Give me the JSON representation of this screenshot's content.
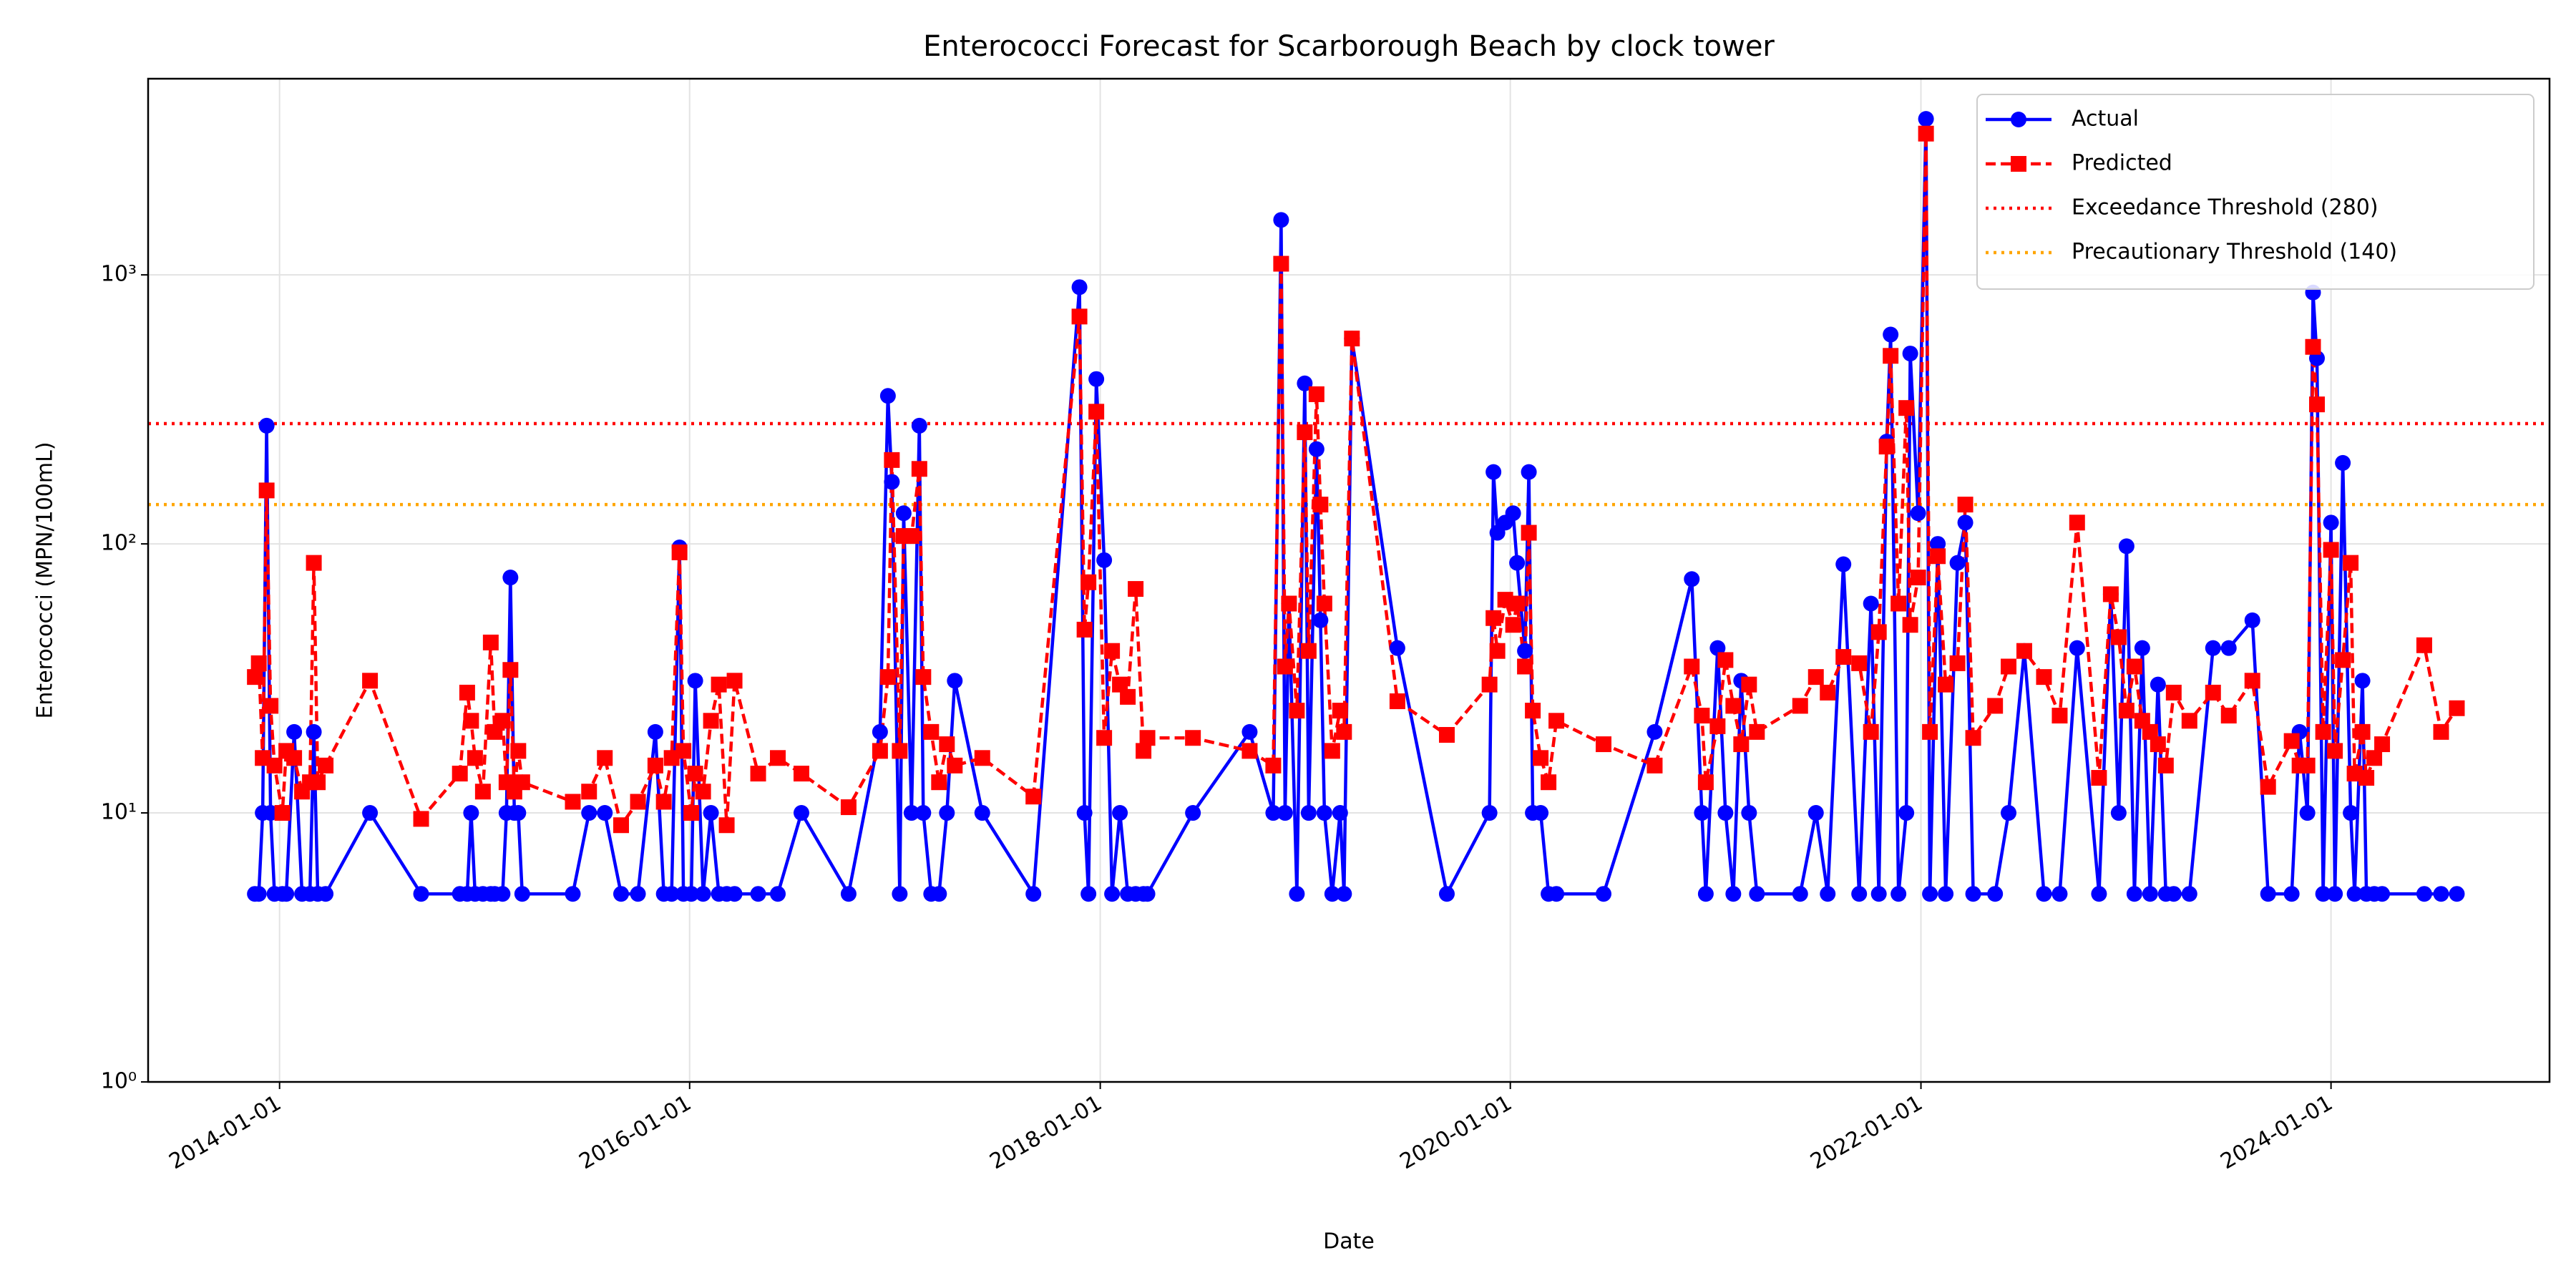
{
  "chart_data": {
    "type": "line",
    "title": "Enterococci Forecast for Scarborough Beach by clock tower",
    "x_label": "Date",
    "y_label": "Enterococci (MPN/100mL)",
    "log_y": true,
    "grid": true,
    "legend": "upper right",
    "xlim": [
      "2013-05-12",
      "2025-01-24"
    ],
    "xticks": [
      "2014-01-01",
      "2016-01-01",
      "2018-01-01",
      "2020-01-01",
      "2022-01-01",
      "2024-01-01"
    ],
    "ylim": [
      1,
      5360
    ],
    "yticks": [
      {
        "value": 1,
        "label": "10⁰"
      },
      {
        "value": 10,
        "label": "10¹"
      },
      {
        "value": 100,
        "label": "10²"
      },
      {
        "value": 1000,
        "label": "10³"
      }
    ],
    "x": [
      "2013-11-18",
      "2013-11-25",
      "2013-12-02",
      "2013-12-09",
      "2013-12-16",
      "2013-12-23",
      "2014-01-06",
      "2014-01-13",
      "2014-01-27",
      "2014-02-10",
      "2014-02-24",
      "2014-03-03",
      "2014-03-10",
      "2014-03-24",
      "2014-06-11",
      "2014-09-10",
      "2014-11-18",
      "2014-12-01",
      "2014-12-08",
      "2014-12-15",
      "2014-12-29",
      "2015-01-12",
      "2015-01-19",
      "2015-02-02",
      "2015-02-09",
      "2015-02-16",
      "2015-02-23",
      "2015-03-02",
      "2015-03-09",
      "2015-06-07",
      "2015-07-06",
      "2015-08-03",
      "2015-09-01",
      "2015-10-01",
      "2015-11-01",
      "2015-11-16",
      "2015-11-30",
      "2015-12-14",
      "2015-12-21",
      "2016-01-04",
      "2016-01-11",
      "2016-01-25",
      "2016-02-08",
      "2016-02-22",
      "2016-03-07",
      "2016-03-21",
      "2016-05-02",
      "2016-06-06",
      "2016-07-18",
      "2016-10-10",
      "2016-12-05",
      "2016-12-19",
      "2016-12-26",
      "2017-01-09",
      "2017-01-16",
      "2017-01-30",
      "2017-02-13",
      "2017-02-20",
      "2017-03-06",
      "2017-03-20",
      "2017-04-03",
      "2017-04-17",
      "2017-06-05",
      "2017-09-04",
      "2017-11-25",
      "2017-12-04",
      "2017-12-11",
      "2017-12-25",
      "2018-01-08",
      "2018-01-22",
      "2018-02-05",
      "2018-02-19",
      "2018-03-05",
      "2018-03-19",
      "2018-03-26",
      "2018-06-15",
      "2018-09-24",
      "2018-11-05",
      "2018-11-19",
      "2018-11-26",
      "2018-12-03",
      "2018-12-17",
      "2018-12-31",
      "2019-01-07",
      "2019-01-21",
      "2019-01-28",
      "2019-02-04",
      "2019-02-18",
      "2019-03-04",
      "2019-03-11",
      "2019-03-25",
      "2019-06-14",
      "2019-09-10",
      "2019-11-25",
      "2019-12-02",
      "2019-12-09",
      "2019-12-23",
      "2020-01-06",
      "2020-01-13",
      "2020-01-27",
      "2020-02-03",
      "2020-02-10",
      "2020-02-24",
      "2020-03-09",
      "2020-03-23",
      "2020-06-15",
      "2020-09-14",
      "2020-11-19",
      "2020-12-07",
      "2020-12-14",
      "2021-01-04",
      "2021-01-18",
      "2021-02-01",
      "2021-02-15",
      "2021-03-01",
      "2021-03-15",
      "2021-05-31",
      "2021-06-28",
      "2021-07-19",
      "2021-08-16",
      "2021-09-13",
      "2021-10-04",
      "2021-10-18",
      "2021-11-01",
      "2021-11-08",
      "2021-11-22",
      "2021-12-06",
      "2021-12-13",
      "2021-12-27",
      "2022-01-10",
      "2022-01-17",
      "2022-01-31",
      "2022-02-14",
      "2022-03-07",
      "2022-03-21",
      "2022-04-04",
      "2022-05-13",
      "2022-06-06",
      "2022-07-04",
      "2022-08-08",
      "2022-09-05",
      "2022-10-06",
      "2022-11-14",
      "2022-12-05",
      "2022-12-19",
      "2023-01-02",
      "2023-01-16",
      "2023-01-30",
      "2023-02-13",
      "2023-02-27",
      "2023-03-13",
      "2023-03-27",
      "2023-04-24",
      "2023-06-05",
      "2023-07-03",
      "2023-08-14",
      "2023-09-11",
      "2023-10-23",
      "2023-11-06",
      "2023-11-20",
      "2023-11-30",
      "2023-12-07",
      "2023-12-18",
      "2024-01-01",
      "2024-01-08",
      "2024-01-22",
      "2024-02-05",
      "2024-02-12",
      "2024-02-26",
      "2024-03-04",
      "2024-03-18",
      "2024-04-01",
      "2024-06-15",
      "2024-07-15",
      "2024-08-12"
    ],
    "series": [
      {
        "name": "Actual",
        "color": "#0000ff",
        "marker": "circle",
        "linestyle": "solid",
        "values": [
          5,
          5,
          10,
          275,
          10,
          5,
          5,
          5,
          20,
          5,
          5,
          20,
          5,
          5,
          10,
          5,
          5,
          5,
          10,
          5,
          5,
          5,
          5,
          5,
          10,
          75,
          10,
          10,
          5,
          5,
          10,
          10,
          5,
          5,
          20,
          5,
          5,
          97,
          5,
          5,
          31,
          5,
          10,
          5,
          5,
          5,
          5,
          5,
          10,
          5,
          20,
          355,
          170,
          5,
          130,
          10,
          275,
          10,
          5,
          5,
          10,
          31,
          10,
          5,
          900,
          10,
          5,
          410,
          87,
          5,
          10,
          5,
          5,
          5,
          5,
          10,
          20,
          10,
          1600,
          10,
          60,
          5,
          395,
          10,
          225,
          52,
          10,
          5,
          10,
          5,
          580,
          41,
          5,
          10,
          185,
          110,
          120,
          130,
          85,
          40,
          185,
          10,
          10,
          5,
          5,
          5,
          20,
          74,
          10,
          5,
          41,
          10,
          5,
          31,
          10,
          5,
          5,
          10,
          5,
          84,
          5,
          60,
          5,
          240,
          600,
          5,
          10,
          510,
          130,
          3800,
          5,
          100,
          5,
          85,
          120,
          5,
          5,
          10,
          40,
          5,
          5,
          41,
          5,
          65,
          10,
          98,
          5,
          41,
          5,
          30,
          5,
          5,
          5,
          41,
          41,
          52,
          5,
          5,
          20,
          10,
          860,
          490,
          5,
          120,
          5,
          200,
          10,
          5,
          31,
          5,
          5,
          5,
          5,
          5,
          5
        ]
      },
      {
        "name": "Predicted",
        "color": "#ff0000",
        "marker": "square",
        "linestyle": "dashed",
        "values": [
          32,
          36,
          16,
          158,
          25,
          15,
          10,
          17,
          16,
          12,
          13,
          85,
          13,
          15,
          31,
          9.5,
          14,
          28,
          22,
          16,
          12,
          43,
          20,
          22,
          13,
          34,
          12,
          17,
          13,
          11,
          12,
          16,
          9,
          11,
          15,
          11,
          16,
          93,
          17,
          10,
          14,
          12,
          22,
          30,
          9,
          31,
          14,
          16,
          14,
          10.5,
          17,
          32,
          205,
          17,
          107,
          107,
          190,
          32,
          20,
          13,
          18,
          15,
          16,
          11.5,
          700,
          48,
          72,
          310,
          19,
          40,
          30,
          27,
          68,
          17,
          19,
          19,
          17,
          15,
          1100,
          35,
          60,
          24,
          260,
          40,
          360,
          140,
          60,
          17,
          24,
          20,
          580,
          26,
          19.5,
          30,
          53,
          40,
          62,
          50,
          60,
          35,
          110,
          24,
          16,
          13,
          22,
          18,
          15,
          35,
          23,
          13,
          21,
          37,
          25,
          18,
          30,
          20,
          25,
          32,
          28,
          38,
          36,
          20,
          47,
          230,
          500,
          60,
          320,
          50,
          75,
          3350,
          20,
          90,
          30,
          36,
          140,
          19,
          25,
          35,
          40,
          32,
          23,
          120,
          13.5,
          65,
          45,
          24,
          35,
          22,
          20,
          18,
          15,
          28,
          22,
          28,
          23,
          31,
          12.5,
          18.5,
          15,
          15,
          540,
          330,
          20,
          95,
          17,
          37,
          85,
          14,
          20,
          13.5,
          16,
          18,
          42,
          20,
          24.5
        ]
      }
    ],
    "thresholds": [
      {
        "name": "Exceedance Threshold (280)",
        "value": 280,
        "color": "#ff0000",
        "linestyle": "dotted"
      },
      {
        "name": "Precautionary Threshold (140)",
        "value": 140,
        "color": "#ffa500",
        "linestyle": "dotted"
      }
    ]
  }
}
